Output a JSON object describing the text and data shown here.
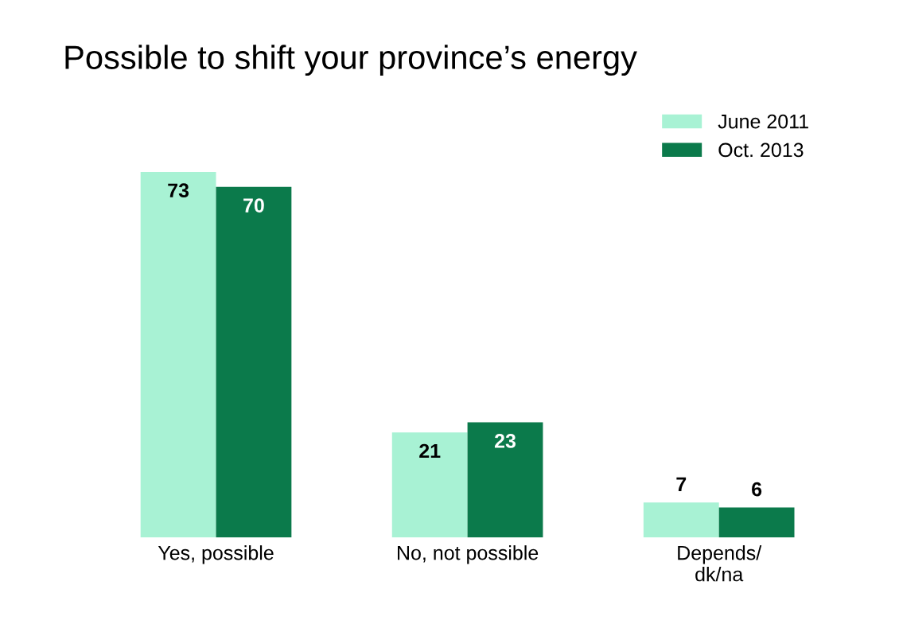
{
  "chart_data": {
    "type": "bar",
    "title": "Possible to shift your province’s energy",
    "categories": [
      "Yes, possible",
      "No, not possible",
      "Depends/\ndk/na"
    ],
    "series": [
      {
        "name": "June 2011",
        "color": "#a8f2d4",
        "values": [
          73,
          21,
          7
        ]
      },
      {
        "name": "Oct. 2013",
        "color": "#0b7a4b",
        "values": [
          70,
          23,
          6
        ]
      }
    ],
    "data_labels": true,
    "legend": "top right",
    "grid": false
  }
}
